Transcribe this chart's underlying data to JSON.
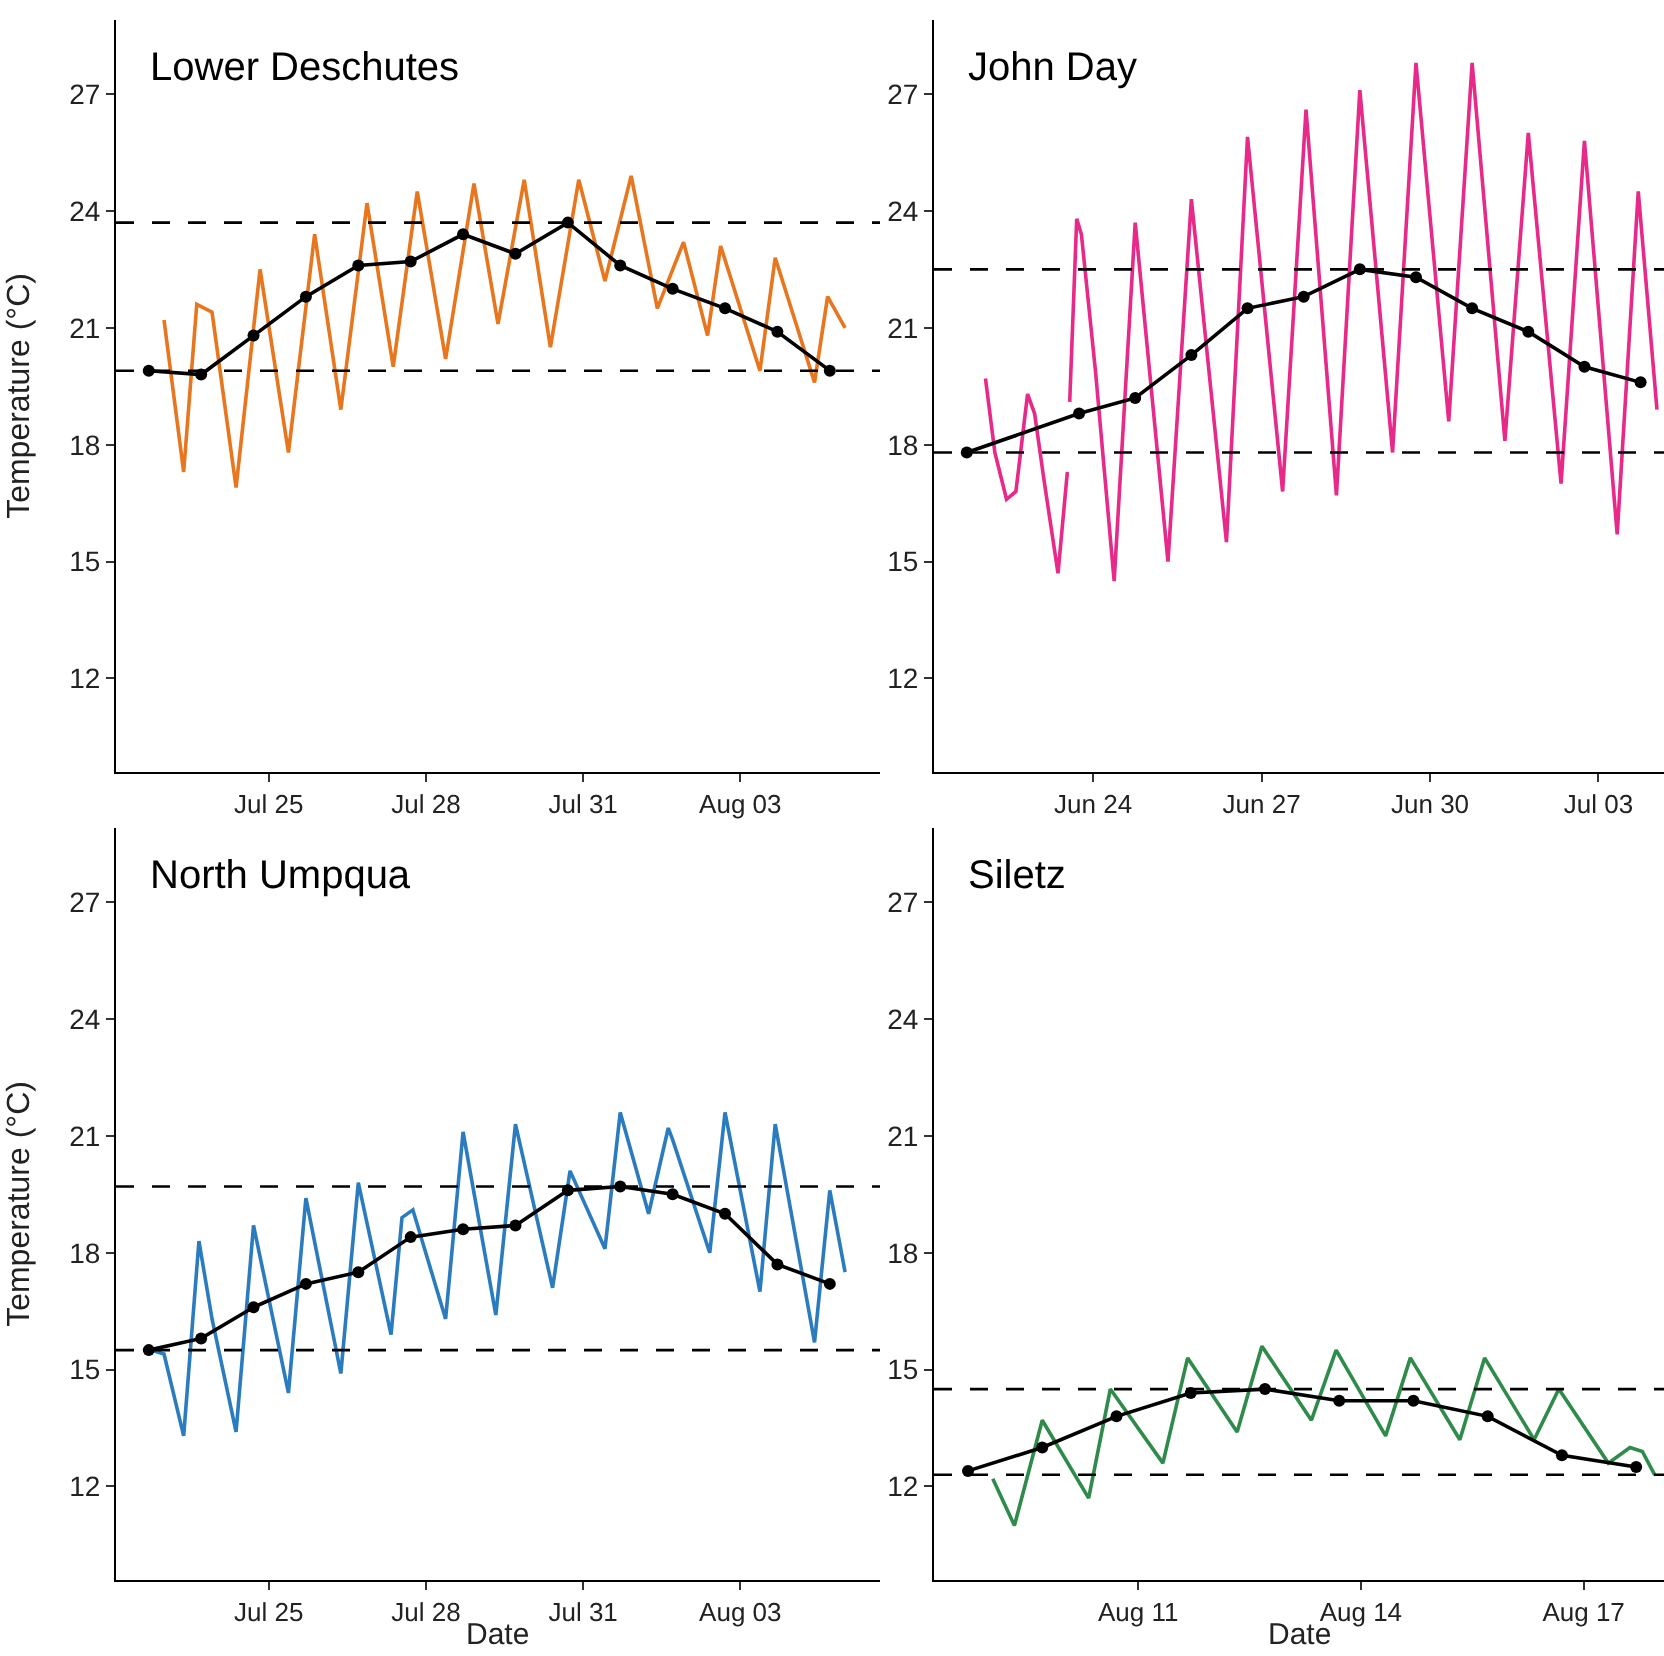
{
  "chart_data": [
    {
      "type": "line",
      "title": "Lower Deschutes",
      "ylabel": "Temperature (°C)",
      "grid": false,
      "line_style": "solid",
      "xlim": [
        "--07-22T02:00",
        "--08-05T16:00"
      ],
      "ylim": [
        9.6,
        28.9
      ],
      "yticks": [
        12,
        15,
        18,
        21,
        24,
        27
      ],
      "xticks": [
        {
          "value": "--07-25",
          "label": "Jul 25"
        },
        {
          "value": "--07-28",
          "label": "Jul 28"
        },
        {
          "value": "--07-31",
          "label": "Jul 31"
        },
        {
          "value": "--08-03",
          "label": "Aug 03"
        }
      ],
      "ref_lines": [
        {
          "axis": "y",
          "value": 23.7,
          "label": null,
          "color": "#000000",
          "line_style": "dashed"
        },
        {
          "axis": "y",
          "value": 19.9,
          "label": null,
          "color": "#000000",
          "line_style": "dashed"
        }
      ],
      "series": [
        {
          "color": "#e8761e",
          "marker": "none",
          "x": [
            "--07-23T00:00",
            "--07-23T09:00",
            "--07-23T15:00",
            "--07-23T22:00",
            "--07-24T09:00",
            "--07-24T20:00",
            "--07-25T09:00",
            "--07-25T21:00",
            "--07-26T09:00",
            "--07-26T21:00",
            "--07-27T09:00",
            "--07-27T20:00",
            "--07-28T09:00",
            "--07-28T22:00",
            "--07-29T09:00",
            "--07-29T21:00",
            "--07-30T09:00",
            "--07-30T22:00",
            "--07-31T10:00",
            "--07-31T22:00",
            "--08-01T10:00",
            "--08-01T22:00",
            "--08-02T09:00",
            "--08-02T15:00",
            "--08-03T09:00",
            "--08-03T16:00",
            "--08-04T10:00",
            "--08-04T16:00",
            "--08-05T00:00"
          ],
          "values": [
            21.2,
            17.3,
            21.6,
            21.4,
            16.9,
            22.5,
            17.8,
            23.4,
            18.9,
            24.2,
            20.0,
            24.5,
            20.2,
            24.7,
            21.1,
            24.8,
            20.5,
            24.8,
            22.2,
            24.9,
            21.5,
            23.2,
            20.8,
            23.1,
            19.9,
            22.8,
            19.6,
            21.8,
            21.0
          ]
        },
        {
          "color": "#000000",
          "marker": "circle",
          "x": [
            "--07-22T17:00",
            "--07-23T17:00",
            "--07-24T17:00",
            "--07-25T17:00",
            "--07-26T17:00",
            "--07-27T17:00",
            "--07-28T17:00",
            "--07-29T17:00",
            "--07-30T17:00",
            "--07-31T17:00",
            "--08-01T17:00",
            "--08-02T17:00",
            "--08-03T17:00",
            "--08-04T17:00"
          ],
          "values": [
            19.9,
            19.8,
            20.8,
            21.8,
            22.6,
            22.7,
            23.4,
            22.9,
            23.7,
            22.6,
            22.0,
            21.5,
            20.9,
            19.9
          ]
        }
      ]
    },
    {
      "type": "line",
      "title": "John Day",
      "grid": false,
      "line_style": "solid",
      "xlim": [
        "--06-21T04:00",
        "--07-04T04:00"
      ],
      "ylim": [
        9.6,
        28.9
      ],
      "yticks": [
        12,
        15,
        18,
        21,
        24,
        27
      ],
      "xticks": [
        {
          "value": "--06-24",
          "label": "Jun 24"
        },
        {
          "value": "--06-27",
          "label": "Jun 27"
        },
        {
          "value": "--06-30",
          "label": "Jun 30"
        },
        {
          "value": "--07-03",
          "label": "Jul 03"
        }
      ],
      "ref_lines": [
        {
          "axis": "y",
          "value": 22.5,
          "label": null,
          "color": "#000000",
          "line_style": "dashed"
        },
        {
          "axis": "y",
          "value": 17.8,
          "label": null,
          "color": "#000000",
          "line_style": "dashed"
        }
      ],
      "series": [
        {
          "color": "#e7298a",
          "marker": "none",
          "x": [
            "--06-22T02:00",
            "--06-22T06:00",
            "--06-22T11:00",
            "--06-22T15:00",
            "--06-22T17:00",
            "--06-22T20:00",
            "--06-22T23:00",
            "--06-23T03:00",
            "--06-23T09:00",
            "--06-23T13:00",
            "--06-23T13:30",
            "--06-23T14:00",
            "--06-23T17:00",
            "--06-23T19:00",
            "--06-24T01:00",
            "--06-24T09:00",
            "--06-24T18:00",
            "--06-25T08:00",
            "--06-25T18:00",
            "--06-26T09:00",
            "--06-26T18:00",
            "--06-27T09:00",
            "--06-27T19:00",
            "--06-28T08:00",
            "--06-28T18:00",
            "--06-29T08:00",
            "--06-29T18:00",
            "--06-30T08:00",
            "--06-30T18:00",
            "--07-01T08:00",
            "--07-01T18:00",
            "--07-02T08:00",
            "--07-02T18:00",
            "--07-03T08:00",
            "--07-03T17:00",
            "--07-04T01:00"
          ],
          "values": [
            19.7,
            17.8,
            16.6,
            16.8,
            17.8,
            19.3,
            18.8,
            17.1,
            14.7,
            17.3,
            null,
            19.1,
            23.8,
            23.4,
            19.9,
            14.5,
            23.7,
            15.0,
            24.3,
            15.5,
            25.9,
            16.8,
            26.6,
            16.7,
            27.1,
            17.8,
            27.8,
            18.6,
            27.8,
            18.1,
            26.0,
            17.0,
            25.8,
            15.7,
            24.5,
            18.9
          ]
        },
        {
          "color": "#000000",
          "marker": "circle",
          "x": [
            "--06-21T18:00",
            "--06-23T18:00",
            "--06-24T18:00",
            "--06-25T18:00",
            "--06-26T18:00",
            "--06-27T18:00",
            "--06-28T18:00",
            "--06-29T18:00",
            "--06-30T18:00",
            "--07-01T18:00",
            "--07-02T18:00",
            "--07-03T18:00"
          ],
          "values": [
            17.8,
            18.8,
            19.2,
            20.3,
            21.5,
            21.8,
            22.5,
            22.3,
            21.5,
            20.9,
            20.0,
            19.6
          ]
        }
      ]
    },
    {
      "type": "line",
      "title": "North Umpqua",
      "ylabel": "Temperature (°C)",
      "xlabel": "Date",
      "grid": false,
      "line_style": "solid",
      "xlim": [
        "--07-22T02:00",
        "--08-05T16:00"
      ],
      "ylim": [
        9.6,
        28.9
      ],
      "yticks": [
        12,
        15,
        18,
        21,
        24,
        27
      ],
      "xticks": [
        {
          "value": "--07-25",
          "label": "Jul 25"
        },
        {
          "value": "--07-28",
          "label": "Jul 28"
        },
        {
          "value": "--07-31",
          "label": "Jul 31"
        },
        {
          "value": "--08-03",
          "label": "Aug 03"
        }
      ],
      "ref_lines": [
        {
          "axis": "y",
          "value": 19.7,
          "label": null,
          "color": "#000000",
          "line_style": "dashed"
        },
        {
          "axis": "y",
          "value": 15.5,
          "label": null,
          "color": "#000000",
          "line_style": "dashed"
        }
      ],
      "series": [
        {
          "color": "#2b7bbf",
          "marker": "none",
          "x": [
            "--07-22T18:00",
            "--07-23T00:00",
            "--07-23T09:00",
            "--07-23T16:00",
            "--07-23T22:00",
            "--07-24T09:00",
            "--07-24T17:00",
            "--07-25T09:00",
            "--07-25T17:00",
            "--07-26T09:00",
            "--07-26T17:00",
            "--07-27T08:00",
            "--07-27T13:00",
            "--07-27T18:00",
            "--07-28T09:00",
            "--07-28T17:00",
            "--07-29T08:00",
            "--07-29T17:00",
            "--07-30T10:00",
            "--07-30T18:00",
            "--07-31T10:00",
            "--07-31T17:00",
            "--08-01T06:00",
            "--08-01T15:00",
            "--08-01T17:00",
            "--08-02T10:00",
            "--08-02T17:00",
            "--08-03T09:00",
            "--08-03T16:00",
            "--08-04T10:00",
            "--08-04T17:00",
            "--08-05T00:00"
          ],
          "values": [
            15.5,
            15.4,
            13.3,
            18.3,
            16.3,
            13.4,
            18.7,
            14.4,
            19.4,
            14.9,
            19.8,
            15.9,
            18.9,
            19.1,
            16.3,
            21.1,
            16.4,
            21.3,
            17.1,
            20.1,
            18.1,
            21.6,
            19.0,
            21.2,
            20.9,
            18.0,
            21.6,
            17.0,
            21.3,
            15.7,
            19.6,
            17.5
          ]
        },
        {
          "color": "#000000",
          "marker": "circle",
          "x": [
            "--07-22T17:00",
            "--07-23T17:00",
            "--07-24T17:00",
            "--07-25T17:00",
            "--07-26T17:00",
            "--07-27T17:00",
            "--07-28T17:00",
            "--07-29T17:00",
            "--07-30T17:00",
            "--07-31T17:00",
            "--08-01T17:00",
            "--08-02T17:00",
            "--08-03T17:00",
            "--08-04T17:00"
          ],
          "values": [
            15.5,
            15.8,
            16.6,
            17.2,
            17.5,
            18.4,
            18.6,
            18.7,
            19.6,
            19.7,
            19.5,
            19.0,
            17.7,
            17.2
          ]
        }
      ]
    },
    {
      "type": "line",
      "title": "Siletz",
      "xlabel": "Date",
      "grid": false,
      "line_style": "solid",
      "xlim": [
        "--08-08T06:00",
        "--08-18T02:00"
      ],
      "ylim": [
        9.6,
        28.9
      ],
      "yticks": [
        12,
        15,
        18,
        21,
        24,
        27
      ],
      "xticks": [
        {
          "value": "--08-11",
          "label": "Aug 11"
        },
        {
          "value": "--08-14",
          "label": "Aug 14"
        },
        {
          "value": "--08-17",
          "label": "Aug 17"
        }
      ],
      "ref_lines": [
        {
          "axis": "y",
          "value": 14.5,
          "label": null,
          "color": "#000000",
          "line_style": "dashed"
        },
        {
          "axis": "y",
          "value": 12.3,
          "label": null,
          "color": "#000000",
          "line_style": "dashed"
        }
      ],
      "series": [
        {
          "color": "#2e8b4a",
          "marker": "none",
          "x": [
            "--08-09T01:00",
            "--08-09T08:00",
            "--08-09T17:00",
            "--08-10T08:00",
            "--08-10T15:00",
            "--08-11T08:00",
            "--08-11T16:00",
            "--08-12T08:00",
            "--08-12T16:00",
            "--08-13T08:00",
            "--08-13T16:00",
            "--08-14T08:00",
            "--08-14T16:00",
            "--08-15T08:00",
            "--08-15T16:00",
            "--08-16T08:00",
            "--08-16T16:00",
            "--08-17T08:00",
            "--08-17T15:00",
            "--08-17T19:00",
            "--08-17T23:00"
          ],
          "values": [
            12.2,
            11.0,
            13.7,
            11.7,
            14.5,
            12.6,
            15.3,
            13.4,
            15.6,
            13.7,
            15.5,
            13.3,
            15.3,
            13.2,
            15.3,
            13.2,
            14.5,
            12.6,
            13.0,
            12.9,
            12.3
          ]
        },
        {
          "color": "#000000",
          "marker": "circle",
          "x": [
            "--08-08T17:00",
            "--08-09T17:00",
            "--08-10T17:00",
            "--08-11T17:00",
            "--08-12T17:00",
            "--08-13T17:00",
            "--08-14T17:00",
            "--08-15T17:00",
            "--08-16T17:00",
            "--08-17T17:00"
          ],
          "values": [
            12.4,
            13.0,
            13.8,
            14.4,
            14.5,
            14.2,
            14.2,
            13.8,
            12.8,
            12.5
          ]
        }
      ]
    }
  ]
}
